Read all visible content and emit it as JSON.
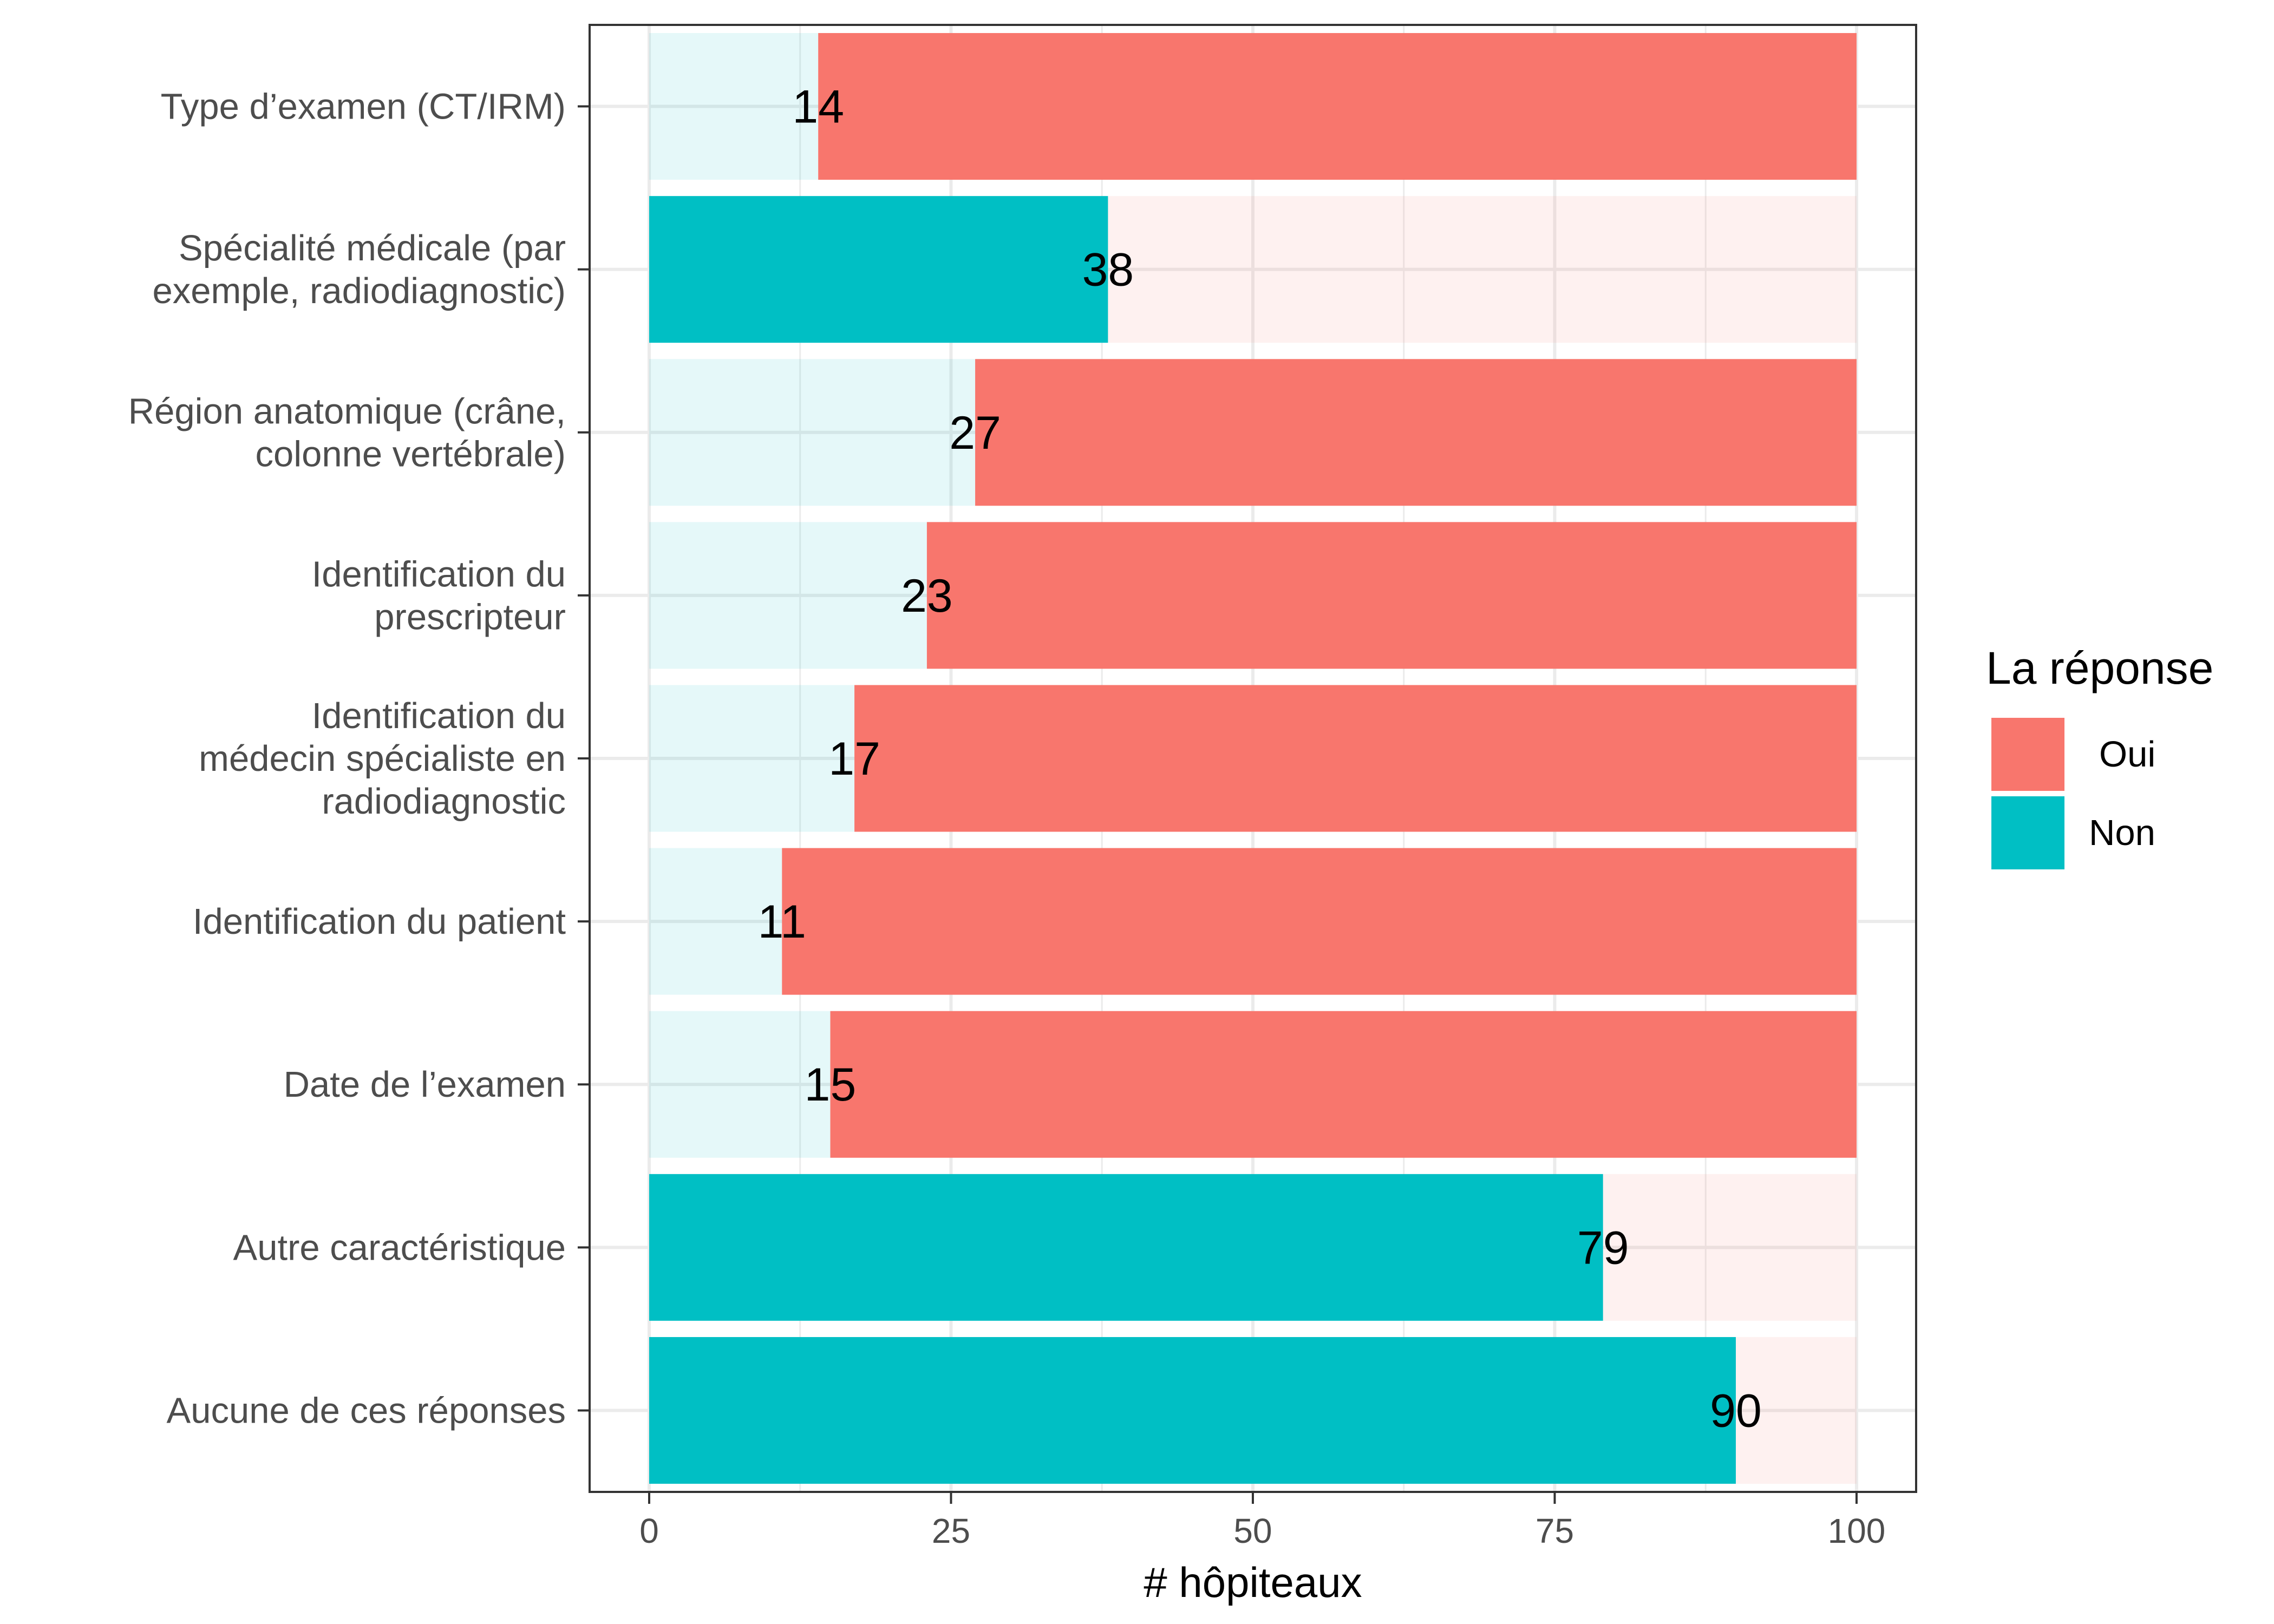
{
  "chart_data": {
    "type": "bar",
    "orientation": "horizontal",
    "stacked": true,
    "xlabel": "# hôpiteaux",
    "ylabel": "",
    "xlim": [
      0,
      100
    ],
    "x_ticks": [
      "0",
      "25",
      "50",
      "75",
      "100"
    ],
    "grid": true,
    "categories": [
      [
        "Type d’examen (CT/IRM)"
      ],
      [
        "Spécialité médicale (par",
        "exemple, radiodiagnostic)"
      ],
      [
        "Région anatomique (crâne,",
        "colonne vertébrale)"
      ],
      [
        "Identification du",
        "prescripteur"
      ],
      [
        "Identification du",
        "médecin spécialiste en",
        "radiodiagnostic"
      ],
      [
        "Identification du patient"
      ],
      [
        "Date de l’examen"
      ],
      [
        "Autre caractéristique"
      ],
      [
        "Aucune de ces réponses"
      ]
    ],
    "series": [
      {
        "name": "Non",
        "color": "#00BFC4",
        "values": [
          14,
          38,
          27,
          23,
          17,
          11,
          15,
          79,
          90
        ]
      },
      {
        "name": "Oui",
        "color": "#F8766D",
        "values": [
          86,
          62,
          73,
          77,
          83,
          89,
          85,
          21,
          10
        ]
      }
    ],
    "highlighted_series": [
      "Oui",
      "Non",
      "Oui",
      "Oui",
      "Oui",
      "Oui",
      "Oui",
      "Non",
      "Non"
    ],
    "data_labels": [
      "14",
      "38",
      "27",
      "23",
      "17",
      "11",
      "15",
      "79",
      "90"
    ],
    "legend": {
      "title": "La réponse",
      "position": "right",
      "items": [
        {
          "label": "Oui",
          "color": "#F8766D"
        },
        {
          "label": "Non",
          "color": "#00BFC4"
        }
      ]
    }
  }
}
